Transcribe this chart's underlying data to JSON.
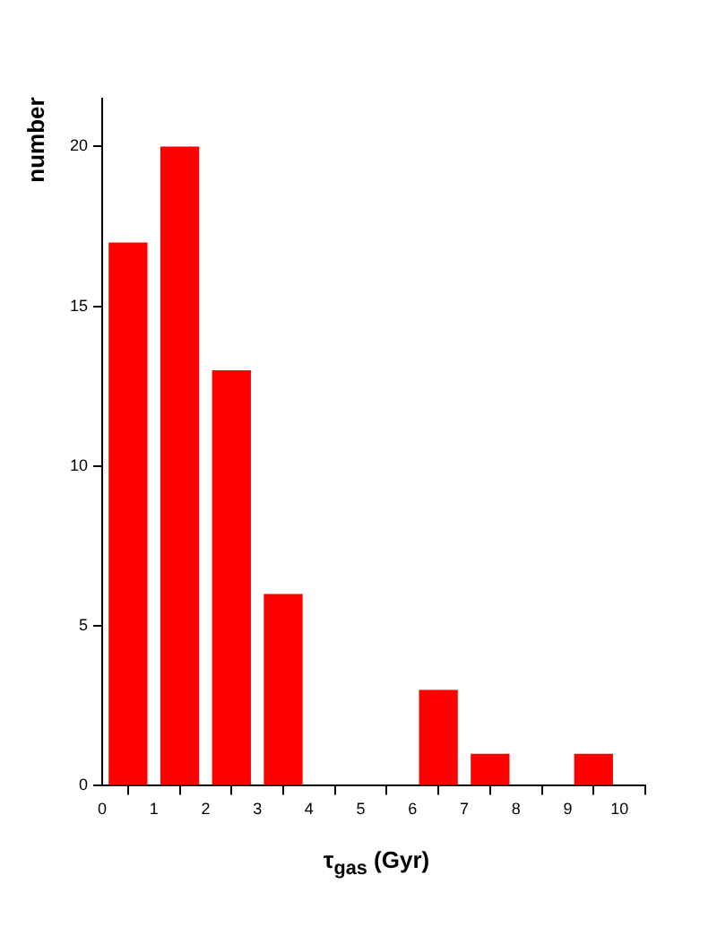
{
  "chart_data": {
    "type": "histogram",
    "bins": [
      0,
      1,
      2,
      3,
      4,
      5,
      6,
      7,
      8,
      9,
      10
    ],
    "values": [
      17,
      20,
      13,
      6,
      0,
      0,
      3,
      1,
      0,
      1
    ],
    "color": "#ff0000",
    "xlabel": "τ$_{gas}$ (Gyr)",
    "ylabel": "number",
    "xlim": [
      0,
      10.5
    ],
    "xticks": [
      0,
      1,
      2,
      3,
      4,
      5,
      6,
      7,
      8,
      9,
      10
    ],
    "ylim": [
      0,
      21.5
    ],
    "yticks": [
      0,
      5,
      10,
      15,
      20
    ],
    "grid": false,
    "legend": false
  }
}
